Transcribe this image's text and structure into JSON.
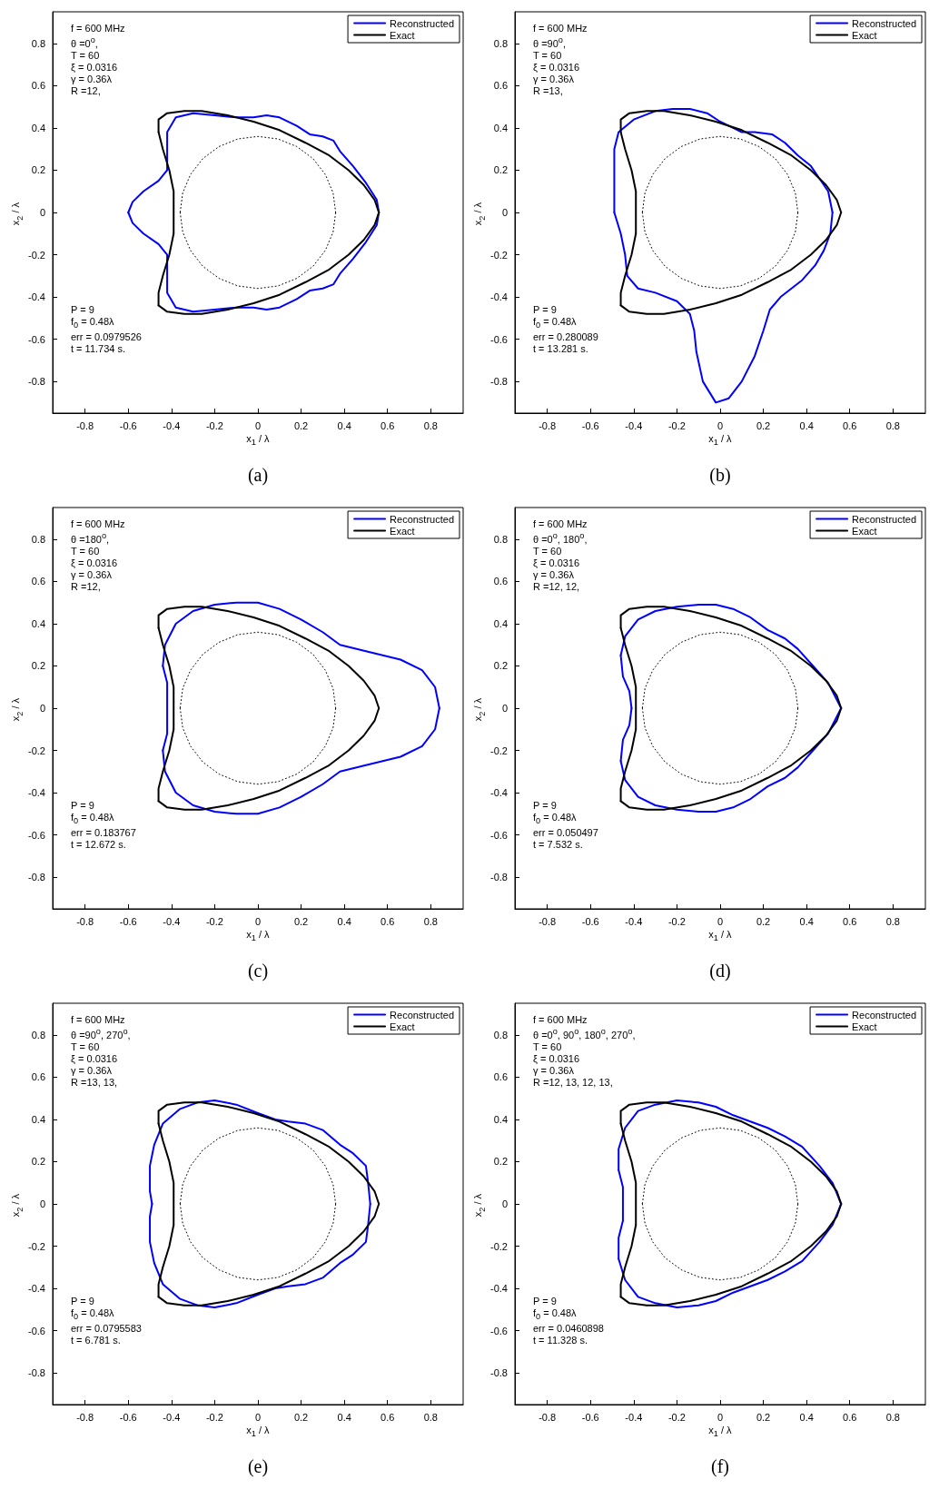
{
  "chart_data": [
    {
      "type": "line",
      "title": "(a)",
      "xlabel": "x$_{1}$ / λ",
      "ylabel": "x$_{2}$ / λ",
      "xlim": [
        -0.95,
        0.95
      ],
      "ylim": [
        -0.95,
        0.95
      ],
      "xticks": [
        -0.8,
        -0.6,
        -0.4,
        -0.2,
        0,
        0.2,
        0.4,
        0.6,
        0.8
      ],
      "yticks": [
        -0.8,
        -0.6,
        -0.4,
        -0.2,
        0,
        0.2,
        0.4,
        0.6,
        0.8
      ],
      "grid": false,
      "legend": "top right",
      "marker": "none",
      "line_style": "solid",
      "annotations": [
        "f = 600 MHz",
        "θ =0$^{o}$,",
        "T = 60",
        "ξ = 0.0316",
        "γ = 0.36λ",
        "R =12,",
        "P = 9",
        "f$_{0}$ = 0.48λ",
        "err = 0.0979526",
        "t = 11.734 s."
      ],
      "series": [
        {
          "name": "Reconstructed",
          "color": "#0000ff",
          "x": [
            0.56,
            0.55,
            0.5,
            0.44,
            0.38,
            0.35,
            0.3,
            0.24,
            0.18,
            0.1,
            0.04,
            -0.02,
            -0.1,
            -0.2,
            -0.3,
            -0.38,
            -0.42,
            -0.42,
            -0.42,
            -0.46,
            -0.53,
            -0.58,
            -0.6,
            -0.58,
            -0.53,
            -0.46,
            -0.42,
            -0.42,
            -0.42,
            -0.38,
            -0.3,
            -0.2,
            -0.1,
            -0.02,
            0.04,
            0.1,
            0.18,
            0.24,
            0.3,
            0.35,
            0.38,
            0.44,
            0.5,
            0.55,
            0.56
          ],
          "values": [
            0,
            0.06,
            0.14,
            0.22,
            0.29,
            0.34,
            0.36,
            0.37,
            0.41,
            0.45,
            0.46,
            0.45,
            0.45,
            0.46,
            0.47,
            0.45,
            0.38,
            0.28,
            0.2,
            0.15,
            0.1,
            0.05,
            0,
            -0.05,
            -0.1,
            -0.15,
            -0.2,
            -0.28,
            -0.38,
            -0.45,
            -0.47,
            -0.46,
            -0.45,
            -0.45,
            -0.46,
            -0.45,
            -0.41,
            -0.37,
            -0.36,
            -0.34,
            -0.29,
            -0.22,
            -0.14,
            -0.06,
            0
          ]
        },
        {
          "name": "Exact",
          "color": "#000000",
          "x": [
            0.56,
            0.54,
            0.49,
            0.42,
            0.33,
            0.22,
            0.1,
            -0.02,
            -0.14,
            -0.26,
            -0.34,
            -0.42,
            -0.46,
            -0.46,
            -0.44,
            -0.41,
            -0.39,
            -0.39,
            -0.39,
            -0.41,
            -0.44,
            -0.46,
            -0.46,
            -0.42,
            -0.34,
            -0.26,
            -0.14,
            -0.02,
            0.1,
            0.22,
            0.33,
            0.42,
            0.49,
            0.54,
            0.56
          ],
          "values": [
            0,
            0.06,
            0.13,
            0.2,
            0.27,
            0.33,
            0.39,
            0.43,
            0.46,
            0.48,
            0.48,
            0.47,
            0.44,
            0.38,
            0.3,
            0.2,
            0.1,
            0,
            -0.1,
            -0.2,
            -0.3,
            -0.38,
            -0.44,
            -0.47,
            -0.48,
            -0.48,
            -0.46,
            -0.43,
            -0.39,
            -0.33,
            -0.27,
            -0.2,
            -0.13,
            -0.06,
            0
          ]
        },
        {
          "color": "#000000",
          "line_style": "dotted",
          "x": [
            0.36,
            0.348,
            0.312,
            0.255,
            0.18,
            0.093,
            0,
            -0.093,
            -0.18,
            -0.255,
            -0.312,
            -0.348,
            -0.36,
            -0.348,
            -0.312,
            -0.255,
            -0.18,
            -0.093,
            0,
            0.093,
            0.18,
            0.255,
            0.312,
            0.348,
            0.36
          ],
          "values": [
            0,
            0.093,
            0.18,
            0.255,
            0.312,
            0.348,
            0.36,
            0.348,
            0.312,
            0.255,
            0.18,
            0.093,
            0,
            -0.093,
            -0.18,
            -0.255,
            -0.312,
            -0.348,
            -0.36,
            -0.348,
            -0.312,
            -0.255,
            -0.18,
            -0.093,
            0
          ]
        }
      ]
    },
    {
      "type": "line",
      "title": "(b)",
      "xlabel": "x$_{1}$ / λ",
      "ylabel": "x$_{2}$ / λ",
      "xlim": [
        -0.95,
        0.95
      ],
      "ylim": [
        -0.95,
        0.95
      ],
      "xticks": [
        -0.8,
        -0.6,
        -0.4,
        -0.2,
        0,
        0.2,
        0.4,
        0.6,
        0.8
      ],
      "yticks": [
        -0.8,
        -0.6,
        -0.4,
        -0.2,
        0,
        0.2,
        0.4,
        0.6,
        0.8
      ],
      "grid": false,
      "legend": "top right",
      "marker": "none",
      "line_style": "solid",
      "annotations": [
        "f = 600 MHz",
        "θ =90$^{o}$,",
        "T = 60",
        "ξ = 0.0316",
        "γ = 0.36λ",
        "R =13,",
        "P = 9",
        "f$_{0}$ = 0.48λ",
        "err = 0.280089",
        "t = 13.281 s."
      ],
      "series": [
        {
          "name": "Reconstructed",
          "color": "#0000ff",
          "x": [
            0.52,
            0.5,
            0.46,
            0.42,
            0.36,
            0.3,
            0.24,
            0.16,
            0.1,
            0.06,
            0,
            -0.06,
            -0.14,
            -0.22,
            -0.3,
            -0.4,
            -0.47,
            -0.49,
            -0.49,
            -0.49,
            -0.49,
            -0.46,
            -0.44,
            -0.43,
            -0.38,
            -0.3,
            -0.2,
            -0.14,
            -0.12,
            -0.11,
            -0.08,
            -0.02,
            0.04,
            0.1,
            0.16,
            0.2,
            0.23,
            0.28,
            0.38,
            0.44,
            0.48,
            0.51,
            0.52
          ],
          "values": [
            0,
            0.1,
            0.16,
            0.22,
            0.27,
            0.33,
            0.37,
            0.38,
            0.38,
            0.4,
            0.43,
            0.47,
            0.49,
            0.49,
            0.48,
            0.44,
            0.38,
            0.3,
            0.2,
            0.1,
            0,
            -0.1,
            -0.2,
            -0.3,
            -0.36,
            -0.38,
            -0.42,
            -0.48,
            -0.56,
            -0.66,
            -0.8,
            -0.9,
            -0.88,
            -0.8,
            -0.68,
            -0.56,
            -0.46,
            -0.4,
            -0.32,
            -0.25,
            -0.18,
            -0.1,
            0
          ]
        },
        {
          "name": "Exact",
          "color": "#000000",
          "x": [
            0.56,
            0.54,
            0.49,
            0.42,
            0.33,
            0.22,
            0.1,
            -0.02,
            -0.14,
            -0.26,
            -0.34,
            -0.42,
            -0.46,
            -0.46,
            -0.44,
            -0.41,
            -0.39,
            -0.39,
            -0.39,
            -0.41,
            -0.44,
            -0.46,
            -0.46,
            -0.42,
            -0.34,
            -0.26,
            -0.14,
            -0.02,
            0.1,
            0.22,
            0.33,
            0.42,
            0.49,
            0.54,
            0.56
          ],
          "values": [
            0,
            0.06,
            0.13,
            0.2,
            0.27,
            0.33,
            0.39,
            0.43,
            0.46,
            0.48,
            0.48,
            0.47,
            0.44,
            0.38,
            0.3,
            0.2,
            0.1,
            0,
            -0.1,
            -0.2,
            -0.3,
            -0.38,
            -0.44,
            -0.47,
            -0.48,
            -0.48,
            -0.46,
            -0.43,
            -0.39,
            -0.33,
            -0.27,
            -0.2,
            -0.13,
            -0.06,
            0
          ]
        },
        {
          "color": "#000000",
          "line_style": "dotted",
          "x": [
            0.36,
            0.348,
            0.312,
            0.255,
            0.18,
            0.093,
            0,
            -0.093,
            -0.18,
            -0.255,
            -0.312,
            -0.348,
            -0.36,
            -0.348,
            -0.312,
            -0.255,
            -0.18,
            -0.093,
            0,
            0.093,
            0.18,
            0.255,
            0.312,
            0.348,
            0.36
          ],
          "values": [
            0,
            0.093,
            0.18,
            0.255,
            0.312,
            0.348,
            0.36,
            0.348,
            0.312,
            0.255,
            0.18,
            0.093,
            0,
            -0.093,
            -0.18,
            -0.255,
            -0.312,
            -0.348,
            -0.36,
            -0.348,
            -0.312,
            -0.255,
            -0.18,
            -0.093,
            0
          ]
        }
      ]
    },
    {
      "type": "line",
      "title": "(c)",
      "xlabel": "x$_{1}$ / λ",
      "ylabel": "x$_{2}$ / λ",
      "xlim": [
        -0.95,
        0.95
      ],
      "ylim": [
        -0.95,
        0.95
      ],
      "xticks": [
        -0.8,
        -0.6,
        -0.4,
        -0.2,
        0,
        0.2,
        0.4,
        0.6,
        0.8
      ],
      "yticks": [
        -0.8,
        -0.6,
        -0.4,
        -0.2,
        0,
        0.2,
        0.4,
        0.6,
        0.8
      ],
      "grid": false,
      "legend": "top right",
      "marker": "none",
      "line_style": "solid",
      "annotations": [
        "f = 600 MHz",
        "θ =180$^{o}$,",
        "T = 60",
        "ξ = 0.0316",
        "γ = 0.36λ",
        "R =12,",
        "P = 9",
        "f$_{0}$ = 0.48λ",
        "err = 0.183767",
        "t = 12.672 s."
      ],
      "series": [
        {
          "name": "Reconstructed",
          "color": "#0000ff",
          "x": [
            0.84,
            0.82,
            0.76,
            0.66,
            0.5,
            0.38,
            0.3,
            0.2,
            0.1,
            0,
            -0.1,
            -0.2,
            -0.3,
            -0.38,
            -0.43,
            -0.44,
            -0.42,
            -0.42,
            -0.42,
            -0.42,
            -0.42,
            -0.44,
            -0.43,
            -0.38,
            -0.3,
            -0.2,
            -0.1,
            0,
            0.1,
            0.2,
            0.3,
            0.38,
            0.5,
            0.66,
            0.76,
            0.82,
            0.84
          ],
          "values": [
            0,
            0.1,
            0.18,
            0.23,
            0.27,
            0.3,
            0.36,
            0.42,
            0.47,
            0.5,
            0.5,
            0.49,
            0.46,
            0.4,
            0.3,
            0.2,
            0.12,
            0.05,
            0,
            -0.05,
            -0.12,
            -0.2,
            -0.3,
            -0.4,
            -0.46,
            -0.49,
            -0.5,
            -0.5,
            -0.47,
            -0.42,
            -0.36,
            -0.3,
            -0.27,
            -0.23,
            -0.18,
            -0.1,
            0
          ]
        },
        {
          "name": "Exact",
          "color": "#000000",
          "x": [
            0.56,
            0.54,
            0.49,
            0.42,
            0.33,
            0.22,
            0.1,
            -0.02,
            -0.14,
            -0.26,
            -0.34,
            -0.42,
            -0.46,
            -0.46,
            -0.44,
            -0.41,
            -0.39,
            -0.39,
            -0.39,
            -0.41,
            -0.44,
            -0.46,
            -0.46,
            -0.42,
            -0.34,
            -0.26,
            -0.14,
            -0.02,
            0.1,
            0.22,
            0.33,
            0.42,
            0.49,
            0.54,
            0.56
          ],
          "values": [
            0,
            0.06,
            0.13,
            0.2,
            0.27,
            0.33,
            0.39,
            0.43,
            0.46,
            0.48,
            0.48,
            0.47,
            0.44,
            0.38,
            0.3,
            0.2,
            0.1,
            0,
            -0.1,
            -0.2,
            -0.3,
            -0.38,
            -0.44,
            -0.47,
            -0.48,
            -0.48,
            -0.46,
            -0.43,
            -0.39,
            -0.33,
            -0.27,
            -0.2,
            -0.13,
            -0.06,
            0
          ]
        },
        {
          "color": "#000000",
          "line_style": "dotted",
          "x": [
            0.36,
            0.348,
            0.312,
            0.255,
            0.18,
            0.093,
            0,
            -0.093,
            -0.18,
            -0.255,
            -0.312,
            -0.348,
            -0.36,
            -0.348,
            -0.312,
            -0.255,
            -0.18,
            -0.093,
            0,
            0.093,
            0.18,
            0.255,
            0.312,
            0.348,
            0.36
          ],
          "values": [
            0,
            0.093,
            0.18,
            0.255,
            0.312,
            0.348,
            0.36,
            0.348,
            0.312,
            0.255,
            0.18,
            0.093,
            0,
            -0.093,
            -0.18,
            -0.255,
            -0.312,
            -0.348,
            -0.36,
            -0.348,
            -0.312,
            -0.255,
            -0.18,
            -0.093,
            0
          ]
        }
      ]
    },
    {
      "type": "line",
      "title": "(d)",
      "xlabel": "x$_{1}$ / λ",
      "ylabel": "x$_{2}$ / λ",
      "xlim": [
        -0.95,
        0.95
      ],
      "ylim": [
        -0.95,
        0.95
      ],
      "xticks": [
        -0.8,
        -0.6,
        -0.4,
        -0.2,
        0,
        0.2,
        0.4,
        0.6,
        0.8
      ],
      "yticks": [
        -0.8,
        -0.6,
        -0.4,
        -0.2,
        0,
        0.2,
        0.4,
        0.6,
        0.8
      ],
      "grid": false,
      "legend": "top right",
      "marker": "none",
      "line_style": "solid",
      "annotations": [
        "f = 600 MHz",
        "θ =0$^{o}$, 180$^{o}$,",
        "T = 60",
        "ξ = 0.0316",
        "γ = 0.36λ",
        "R =12, 12,",
        "P = 9",
        "f$_{0}$ = 0.48λ",
        "err = 0.050497",
        "t = 7.532 s."
      ],
      "series": [
        {
          "name": "Reconstructed",
          "color": "#0000ff",
          "x": [
            0.56,
            0.5,
            0.43,
            0.36,
            0.3,
            0.22,
            0.14,
            0.06,
            -0.02,
            -0.1,
            -0.2,
            -0.3,
            -0.38,
            -0.44,
            -0.46,
            -0.45,
            -0.42,
            -0.41,
            -0.42,
            -0.45,
            -0.46,
            -0.44,
            -0.38,
            -0.3,
            -0.2,
            -0.1,
            -0.02,
            0.06,
            0.14,
            0.22,
            0.3,
            0.36,
            0.43,
            0.5,
            0.56
          ],
          "values": [
            0,
            0.12,
            0.2,
            0.28,
            0.33,
            0.37,
            0.43,
            0.47,
            0.49,
            0.49,
            0.48,
            0.46,
            0.42,
            0.34,
            0.25,
            0.15,
            0.08,
            0,
            -0.08,
            -0.15,
            -0.25,
            -0.34,
            -0.42,
            -0.46,
            -0.48,
            -0.49,
            -0.49,
            -0.47,
            -0.43,
            -0.37,
            -0.33,
            -0.28,
            -0.2,
            -0.12,
            0
          ]
        },
        {
          "name": "Exact",
          "color": "#000000",
          "x": [
            0.56,
            0.54,
            0.49,
            0.42,
            0.33,
            0.22,
            0.1,
            -0.02,
            -0.14,
            -0.26,
            -0.34,
            -0.42,
            -0.46,
            -0.46,
            -0.44,
            -0.41,
            -0.39,
            -0.39,
            -0.39,
            -0.41,
            -0.44,
            -0.46,
            -0.46,
            -0.42,
            -0.34,
            -0.26,
            -0.14,
            -0.02,
            0.1,
            0.22,
            0.33,
            0.42,
            0.49,
            0.54,
            0.56
          ],
          "values": [
            0,
            0.06,
            0.13,
            0.2,
            0.27,
            0.33,
            0.39,
            0.43,
            0.46,
            0.48,
            0.48,
            0.47,
            0.44,
            0.38,
            0.3,
            0.2,
            0.1,
            0,
            -0.1,
            -0.2,
            -0.3,
            -0.38,
            -0.44,
            -0.47,
            -0.48,
            -0.48,
            -0.46,
            -0.43,
            -0.39,
            -0.33,
            -0.27,
            -0.2,
            -0.13,
            -0.06,
            0
          ]
        },
        {
          "color": "#000000",
          "line_style": "dotted",
          "x": [
            0.36,
            0.348,
            0.312,
            0.255,
            0.18,
            0.093,
            0,
            -0.093,
            -0.18,
            -0.255,
            -0.312,
            -0.348,
            -0.36,
            -0.348,
            -0.312,
            -0.255,
            -0.18,
            -0.093,
            0,
            0.093,
            0.18,
            0.255,
            0.312,
            0.348,
            0.36
          ],
          "values": [
            0,
            0.093,
            0.18,
            0.255,
            0.312,
            0.348,
            0.36,
            0.348,
            0.312,
            0.255,
            0.18,
            0.093,
            0,
            -0.093,
            -0.18,
            -0.255,
            -0.312,
            -0.348,
            -0.36,
            -0.348,
            -0.312,
            -0.255,
            -0.18,
            -0.093,
            0
          ]
        }
      ]
    },
    {
      "type": "line",
      "title": "(e)",
      "xlabel": "x$_{1}$ / λ",
      "ylabel": "x$_{2}$ / λ",
      "xlim": [
        -0.95,
        0.95
      ],
      "ylim": [
        -0.95,
        0.95
      ],
      "xticks": [
        -0.8,
        -0.6,
        -0.4,
        -0.2,
        0,
        0.2,
        0.4,
        0.6,
        0.8
      ],
      "yticks": [
        -0.8,
        -0.6,
        -0.4,
        -0.2,
        0,
        0.2,
        0.4,
        0.6,
        0.8
      ],
      "grid": false,
      "legend": "top right",
      "marker": "none",
      "line_style": "solid",
      "annotations": [
        "f = 600 MHz",
        "θ =90$^{o}$, 270$^{o}$,",
        "T = 60",
        "ξ = 0.0316",
        "γ = 0.36λ",
        "R =13, 13,",
        "P = 9",
        "f$_{0}$ = 0.48λ",
        "err = 0.0795583",
        "t = 6.781 s."
      ],
      "series": [
        {
          "name": "Reconstructed",
          "color": "#0000ff",
          "x": [
            0.52,
            0.51,
            0.5,
            0.44,
            0.38,
            0.3,
            0.22,
            0.14,
            0.08,
            0,
            -0.1,
            -0.2,
            -0.28,
            -0.36,
            -0.44,
            -0.48,
            -0.5,
            -0.5,
            -0.49,
            -0.5,
            -0.5,
            -0.48,
            -0.44,
            -0.36,
            -0.28,
            -0.2,
            -0.1,
            0,
            0.08,
            0.14,
            0.22,
            0.3,
            0.38,
            0.44,
            0.5,
            0.51,
            0.52
          ],
          "values": [
            0,
            0.1,
            0.18,
            0.24,
            0.28,
            0.35,
            0.38,
            0.39,
            0.4,
            0.43,
            0.47,
            0.49,
            0.48,
            0.45,
            0.38,
            0.28,
            0.18,
            0.06,
            0,
            -0.06,
            -0.18,
            -0.28,
            -0.38,
            -0.45,
            -0.48,
            -0.49,
            -0.47,
            -0.43,
            -0.4,
            -0.39,
            -0.38,
            -0.35,
            -0.28,
            -0.24,
            -0.18,
            -0.1,
            0
          ]
        },
        {
          "name": "Exact",
          "color": "#000000",
          "x": [
            0.56,
            0.54,
            0.49,
            0.42,
            0.33,
            0.22,
            0.1,
            -0.02,
            -0.14,
            -0.26,
            -0.34,
            -0.42,
            -0.46,
            -0.46,
            -0.44,
            -0.41,
            -0.39,
            -0.39,
            -0.39,
            -0.41,
            -0.44,
            -0.46,
            -0.46,
            -0.42,
            -0.34,
            -0.26,
            -0.14,
            -0.02,
            0.1,
            0.22,
            0.33,
            0.42,
            0.49,
            0.54,
            0.56
          ],
          "values": [
            0,
            0.06,
            0.13,
            0.2,
            0.27,
            0.33,
            0.39,
            0.43,
            0.46,
            0.48,
            0.48,
            0.47,
            0.44,
            0.38,
            0.3,
            0.2,
            0.1,
            0,
            -0.1,
            -0.2,
            -0.3,
            -0.38,
            -0.44,
            -0.47,
            -0.48,
            -0.48,
            -0.46,
            -0.43,
            -0.39,
            -0.33,
            -0.27,
            -0.2,
            -0.13,
            -0.06,
            0
          ]
        },
        {
          "color": "#000000",
          "line_style": "dotted",
          "x": [
            0.36,
            0.348,
            0.312,
            0.255,
            0.18,
            0.093,
            0,
            -0.093,
            -0.18,
            -0.255,
            -0.312,
            -0.348,
            -0.36,
            -0.348,
            -0.312,
            -0.255,
            -0.18,
            -0.093,
            0,
            0.093,
            0.18,
            0.255,
            0.312,
            0.348,
            0.36
          ],
          "values": [
            0,
            0.093,
            0.18,
            0.255,
            0.312,
            0.348,
            0.36,
            0.348,
            0.312,
            0.255,
            0.18,
            0.093,
            0,
            -0.093,
            -0.18,
            -0.255,
            -0.312,
            -0.348,
            -0.36,
            -0.348,
            -0.312,
            -0.255,
            -0.18,
            -0.093,
            0
          ]
        }
      ]
    },
    {
      "type": "line",
      "title": "(f)",
      "xlabel": "x$_{1}$ / λ",
      "ylabel": "x$_{2}$ / λ",
      "xlim": [
        -0.95,
        0.95
      ],
      "ylim": [
        -0.95,
        0.95
      ],
      "xticks": [
        -0.8,
        -0.6,
        -0.4,
        -0.2,
        0,
        0.2,
        0.4,
        0.6,
        0.8
      ],
      "yticks": [
        -0.8,
        -0.6,
        -0.4,
        -0.2,
        0,
        0.2,
        0.4,
        0.6,
        0.8
      ],
      "grid": false,
      "legend": "top right",
      "marker": "none",
      "line_style": "solid",
      "annotations": [
        "f = 600 MHz",
        "θ =0$^{o}$, 90$^{o}$, 180$^{o}$, 270$^{o}$,",
        "T = 60",
        "ξ = 0.0316",
        "γ = 0.36λ",
        "R =12, 13, 12, 13,",
        "P = 9",
        "f$_{0}$ = 0.48λ",
        "err = 0.0460898",
        "t = 11.328 s."
      ],
      "series": [
        {
          "name": "Reconstructed",
          "color": "#0000ff",
          "x": [
            0.56,
            0.52,
            0.46,
            0.38,
            0.3,
            0.22,
            0.14,
            0.06,
            -0.02,
            -0.1,
            -0.2,
            -0.3,
            -0.38,
            -0.44,
            -0.47,
            -0.47,
            -0.45,
            -0.45,
            -0.45,
            -0.47,
            -0.47,
            -0.44,
            -0.38,
            -0.3,
            -0.2,
            -0.1,
            -0.02,
            0.06,
            0.14,
            0.22,
            0.3,
            0.38,
            0.46,
            0.52,
            0.56
          ],
          "values": [
            0,
            0.1,
            0.18,
            0.27,
            0.32,
            0.36,
            0.39,
            0.42,
            0.46,
            0.48,
            0.49,
            0.47,
            0.44,
            0.36,
            0.26,
            0.16,
            0.08,
            0,
            -0.08,
            -0.16,
            -0.26,
            -0.36,
            -0.44,
            -0.47,
            -0.49,
            -0.48,
            -0.46,
            -0.42,
            -0.39,
            -0.36,
            -0.32,
            -0.27,
            -0.18,
            -0.1,
            0
          ]
        },
        {
          "name": "Exact",
          "color": "#000000",
          "x": [
            0.56,
            0.54,
            0.49,
            0.42,
            0.33,
            0.22,
            0.1,
            -0.02,
            -0.14,
            -0.26,
            -0.34,
            -0.42,
            -0.46,
            -0.46,
            -0.44,
            -0.41,
            -0.39,
            -0.39,
            -0.39,
            -0.41,
            -0.44,
            -0.46,
            -0.46,
            -0.42,
            -0.34,
            -0.26,
            -0.14,
            -0.02,
            0.1,
            0.22,
            0.33,
            0.42,
            0.49,
            0.54,
            0.56
          ],
          "values": [
            0,
            0.06,
            0.13,
            0.2,
            0.27,
            0.33,
            0.39,
            0.43,
            0.46,
            0.48,
            0.48,
            0.47,
            0.44,
            0.38,
            0.3,
            0.2,
            0.1,
            0,
            -0.1,
            -0.2,
            -0.3,
            -0.38,
            -0.44,
            -0.47,
            -0.48,
            -0.48,
            -0.46,
            -0.43,
            -0.39,
            -0.33,
            -0.27,
            -0.2,
            -0.13,
            -0.06,
            0
          ]
        },
        {
          "color": "#000000",
          "line_style": "dotted",
          "x": [
            0.36,
            0.348,
            0.312,
            0.255,
            0.18,
            0.093,
            0,
            -0.093,
            -0.18,
            -0.255,
            -0.312,
            -0.348,
            -0.36,
            -0.348,
            -0.312,
            -0.255,
            -0.18,
            -0.093,
            0,
            0.093,
            0.18,
            0.255,
            0.312,
            0.348,
            0.36
          ],
          "values": [
            0,
            0.093,
            0.18,
            0.255,
            0.312,
            0.348,
            0.36,
            0.348,
            0.312,
            0.255,
            0.18,
            0.093,
            0,
            -0.093,
            -0.18,
            -0.255,
            -0.312,
            -0.348,
            -0.36,
            -0.348,
            -0.312,
            -0.255,
            -0.18,
            -0.093,
            0
          ]
        }
      ]
    }
  ]
}
